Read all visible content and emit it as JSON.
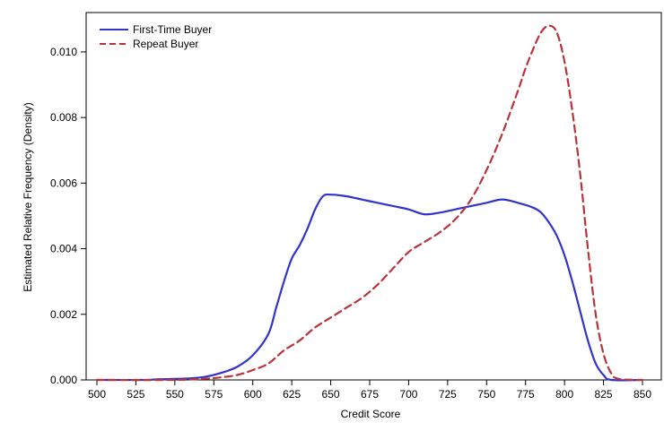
{
  "chart_data": {
    "type": "line",
    "title": "",
    "xlabel": "Credit Score",
    "ylabel": "Estimated Relative Frequency (Density)",
    "xlim": [
      500,
      850
    ],
    "ylim": [
      0,
      0.0112
    ],
    "xticks": [
      500,
      525,
      550,
      575,
      600,
      625,
      650,
      675,
      700,
      725,
      750,
      775,
      800,
      825,
      850
    ],
    "yticks": [
      0.0,
      0.002,
      0.004,
      0.006,
      0.008,
      0.01
    ],
    "ytick_labels": [
      "0.000",
      "0.002",
      "0.004",
      "0.006",
      "0.008",
      "0.010"
    ],
    "legend_position": "top-left",
    "series": [
      {
        "name": "First-Time Buyer",
        "color": "#3333cc",
        "style": "solid",
        "points": [
          [
            500,
            0.0
          ],
          [
            530,
            0.0
          ],
          [
            540,
            2e-05
          ],
          [
            560,
            5e-05
          ],
          [
            570,
            0.0001
          ],
          [
            580,
            0.00022
          ],
          [
            590,
            0.0004
          ],
          [
            600,
            0.00075
          ],
          [
            610,
            0.0014
          ],
          [
            615,
            0.0022
          ],
          [
            620,
            0.003
          ],
          [
            625,
            0.0037
          ],
          [
            630,
            0.0041
          ],
          [
            635,
            0.0046
          ],
          [
            640,
            0.0052
          ],
          [
            645,
            0.0056
          ],
          [
            650,
            0.00565
          ],
          [
            660,
            0.0056
          ],
          [
            670,
            0.0055
          ],
          [
            680,
            0.0054
          ],
          [
            690,
            0.0053
          ],
          [
            700,
            0.0052
          ],
          [
            710,
            0.00505
          ],
          [
            720,
            0.0051
          ],
          [
            730,
            0.0052
          ],
          [
            740,
            0.0053
          ],
          [
            750,
            0.0054
          ],
          [
            760,
            0.0055
          ],
          [
            770,
            0.0054
          ],
          [
            780,
            0.00525
          ],
          [
            785,
            0.0051
          ],
          [
            790,
            0.0048
          ],
          [
            795,
            0.0044
          ],
          [
            800,
            0.0038
          ],
          [
            805,
            0.003
          ],
          [
            810,
            0.0021
          ],
          [
            815,
            0.0012
          ],
          [
            820,
            0.0005
          ],
          [
            825,
            0.00015
          ],
          [
            830,
            0.0
          ],
          [
            850,
            0.0
          ]
        ]
      },
      {
        "name": "Repeat Buyer",
        "color": "#b8333a",
        "style": "dashed",
        "points": [
          [
            500,
            0.0
          ],
          [
            550,
            0.0
          ],
          [
            570,
            4e-05
          ],
          [
            580,
            8e-05
          ],
          [
            590,
            0.00015
          ],
          [
            600,
            0.0003
          ],
          [
            610,
            0.0005
          ],
          [
            620,
            0.0009
          ],
          [
            630,
            0.0012
          ],
          [
            640,
            0.0016
          ],
          [
            650,
            0.0019
          ],
          [
            660,
            0.0022
          ],
          [
            670,
            0.0025
          ],
          [
            680,
            0.0029
          ],
          [
            690,
            0.0034
          ],
          [
            700,
            0.0039
          ],
          [
            710,
            0.0042
          ],
          [
            720,
            0.0045
          ],
          [
            730,
            0.0049
          ],
          [
            740,
            0.0055
          ],
          [
            750,
            0.0064
          ],
          [
            760,
            0.0075
          ],
          [
            770,
            0.0088
          ],
          [
            775,
            0.0095
          ],
          [
            780,
            0.0101
          ],
          [
            785,
            0.0106
          ],
          [
            790,
            0.0108
          ],
          [
            795,
            0.0106
          ],
          [
            800,
            0.0097
          ],
          [
            805,
            0.0082
          ],
          [
            810,
            0.0063
          ],
          [
            815,
            0.004
          ],
          [
            820,
            0.002
          ],
          [
            825,
            0.0008
          ],
          [
            830,
            0.0002
          ],
          [
            835,
            3e-05
          ],
          [
            850,
            0.0
          ]
        ]
      }
    ]
  }
}
